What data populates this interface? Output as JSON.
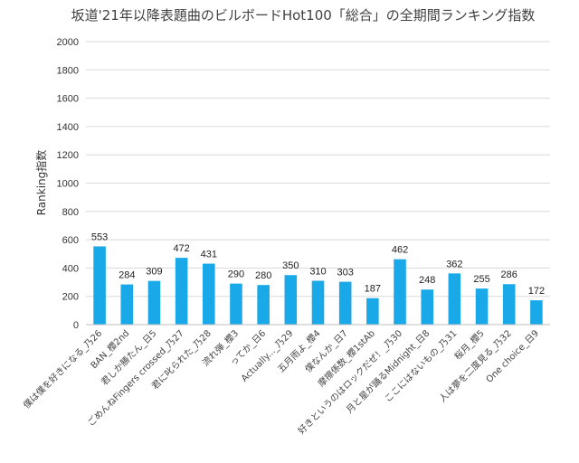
{
  "chart_data": {
    "type": "bar",
    "title": "坂道'21年以降表題曲のビルボードHot100「総合」の全期間ランキング指数",
    "xlabel": "",
    "ylabel": "Ranking指数",
    "ylim": [
      0,
      2000
    ],
    "yticks": [
      0,
      200,
      400,
      600,
      800,
      1000,
      1200,
      1400,
      1600,
      1800,
      2000
    ],
    "grid": true,
    "bar_color": "#1aa9e8",
    "categories": [
      "僕は僕を好きになる_乃26",
      "BAN_櫻2nd",
      "君しか勝たん_日5",
      "ごめんねFingers crossed_乃27",
      "君に叱られた_乃28",
      "流れ弾_櫻3",
      "ってか_日6",
      "Actually..._乃29",
      "五月雨よ_櫻4",
      "僕なんか_日7",
      "摩擦係数_櫻1stAb",
      "好きというのはロックだぜ！_乃30",
      "月と星が踊るMidnight_日8",
      "ここにはないもの_乃31",
      "桜月_櫻5",
      "人は夢を二度見る_乃32",
      "One choice_日9"
    ],
    "values": [
      553,
      284,
      309,
      472,
      431,
      290,
      280,
      350,
      310,
      303,
      187,
      462,
      248,
      362,
      255,
      286,
      172
    ],
    "data_labels": [
      "553",
      "284",
      "309",
      "472",
      "431",
      "290",
      "280",
      "350",
      "310",
      "303",
      "187",
      "462",
      "248",
      "362",
      "255",
      "286",
      "172"
    ],
    "ytick_labels": [
      "0",
      "200",
      "400",
      "600",
      "800",
      "1000",
      "1200",
      "1400",
      "1600",
      "1800",
      "2000"
    ]
  }
}
